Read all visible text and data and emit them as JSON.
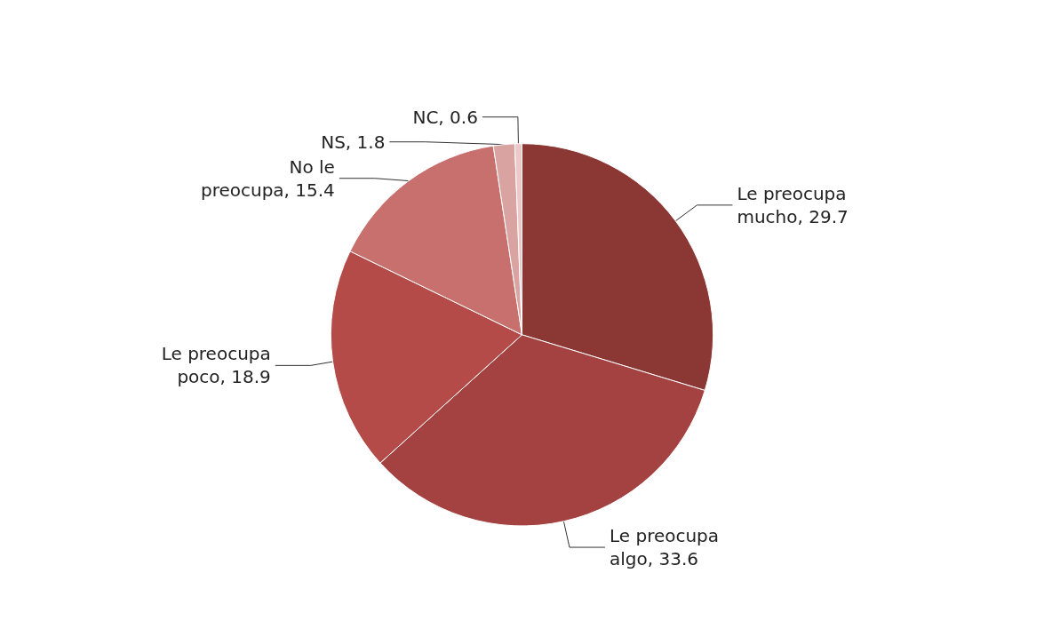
{
  "chart_data": {
    "type": "pie",
    "categories": [
      "Le preocupa mucho",
      "Le preocupa algo",
      "Le preocupa poco",
      "No le preocupa",
      "NS",
      "NC"
    ],
    "values": [
      29.7,
      33.6,
      18.9,
      15.4,
      1.8,
      0.6
    ],
    "colors": [
      "#8b3734",
      "#a34240",
      "#b44b48",
      "#c7706d",
      "#d9a3a2",
      "#ecc9c8"
    ],
    "value_labels": [
      ", 29.7",
      ", 33.6",
      ", 18.9",
      ", 15.4",
      ", 1.8",
      ", 0.6"
    ],
    "legend": false
  }
}
